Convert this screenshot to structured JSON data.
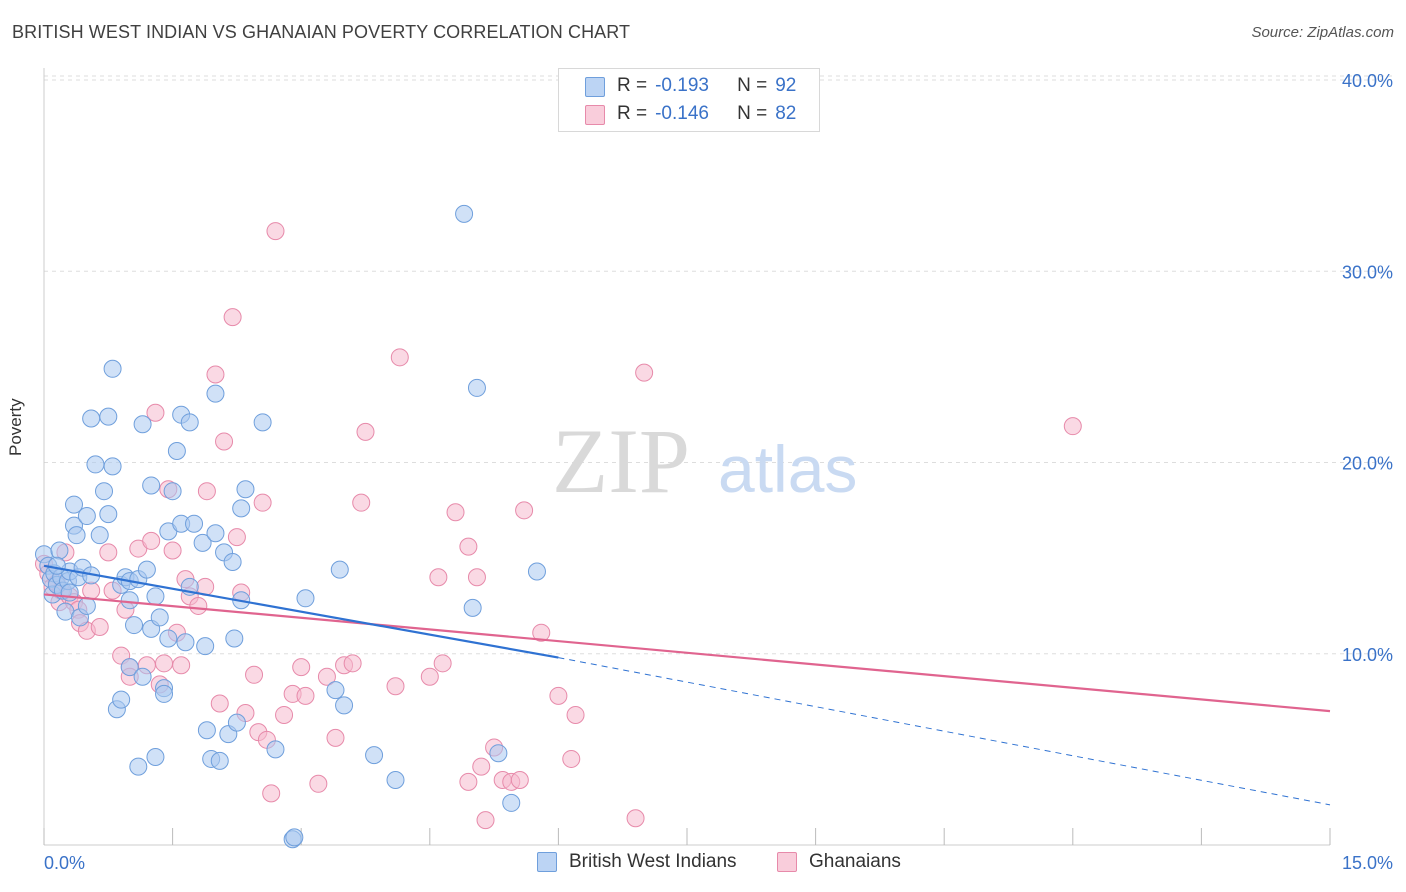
{
  "title": "BRITISH WEST INDIAN VS GHANAIAN POVERTY CORRELATION CHART",
  "source": "Source: ZipAtlas.com",
  "watermark": {
    "zip": "ZIP",
    "atlas": "atlas"
  },
  "legend_top": {
    "r_label": "R =",
    "n_label": "N =",
    "rows": [
      {
        "r": "-0.193",
        "n": "92"
      },
      {
        "r": "-0.146",
        "n": "82"
      }
    ]
  },
  "colors": {
    "blue_fill": "#a9c8f0",
    "blue_stroke": "#6f9fdc",
    "blue_line": "#2f72d2",
    "pink_fill": "#f6b9cd",
    "pink_stroke": "#e78aaa",
    "pink_line": "#e0648f",
    "tick_label": "#3a72c8",
    "grid": "#dddddd"
  },
  "chart_data": {
    "type": "scatter",
    "title": "BRITISH WEST INDIAN VS GHANAIAN POVERTY CORRELATION CHART",
    "xlabel": "",
    "ylabel": "Poverty",
    "xlim": [
      0,
      15
    ],
    "ylim": [
      0,
      40
    ],
    "x_ticks": [
      0,
      1.5,
      3,
      4.5,
      6,
      7.5,
      9,
      10.5,
      12,
      13.5,
      15
    ],
    "x_tick_labels": {
      "left": "0.0%",
      "right": "15.0%"
    },
    "y_ticks": [
      10,
      20,
      30,
      40
    ],
    "y_tick_labels": [
      "10.0%",
      "20.0%",
      "30.0%",
      "40.0%"
    ],
    "grid": true,
    "legend_position": "bottom",
    "series": [
      {
        "name": "British West Indians",
        "r": -0.193,
        "n": 92,
        "trend": {
          "x0": 0,
          "y0": 14.6,
          "x1": 6.0,
          "y1": 9.8,
          "dashed_to_x": 15,
          "dashed_to_y": 2.1
        },
        "points": [
          [
            0.0,
            15.2
          ],
          [
            0.05,
            14.6
          ],
          [
            0.08,
            13.9
          ],
          [
            0.1,
            13.1
          ],
          [
            0.12,
            14.2
          ],
          [
            0.15,
            13.6
          ],
          [
            0.18,
            15.4
          ],
          [
            0.2,
            14.0
          ],
          [
            0.22,
            13.3
          ],
          [
            0.25,
            12.2
          ],
          [
            0.28,
            13.8
          ],
          [
            0.3,
            14.3
          ],
          [
            0.35,
            16.7
          ],
          [
            0.35,
            17.8
          ],
          [
            0.38,
            16.2
          ],
          [
            0.4,
            14.0
          ],
          [
            0.42,
            11.9
          ],
          [
            0.45,
            14.5
          ],
          [
            0.5,
            17.2
          ],
          [
            0.5,
            12.5
          ],
          [
            0.55,
            22.3
          ],
          [
            0.55,
            14.1
          ],
          [
            0.6,
            19.9
          ],
          [
            0.65,
            16.2
          ],
          [
            0.7,
            18.5
          ],
          [
            0.75,
            22.4
          ],
          [
            0.75,
            17.3
          ],
          [
            0.8,
            19.8
          ],
          [
            0.8,
            24.9
          ],
          [
            0.85,
            7.1
          ],
          [
            0.9,
            7.6
          ],
          [
            0.9,
            13.6
          ],
          [
            0.95,
            14.0
          ],
          [
            1.0,
            12.8
          ],
          [
            1.0,
            13.8
          ],
          [
            1.0,
            9.3
          ],
          [
            1.05,
            11.5
          ],
          [
            1.1,
            13.9
          ],
          [
            1.1,
            4.1
          ],
          [
            1.15,
            8.8
          ],
          [
            1.15,
            22.0
          ],
          [
            1.2,
            14.4
          ],
          [
            1.25,
            18.8
          ],
          [
            1.25,
            11.3
          ],
          [
            1.3,
            13.0
          ],
          [
            1.3,
            4.6
          ],
          [
            1.35,
            11.9
          ],
          [
            1.4,
            8.2
          ],
          [
            1.4,
            7.9
          ],
          [
            1.45,
            16.4
          ],
          [
            1.45,
            10.8
          ],
          [
            1.5,
            18.5
          ],
          [
            1.55,
            20.6
          ],
          [
            1.6,
            22.5
          ],
          [
            1.6,
            16.8
          ],
          [
            1.65,
            10.6
          ],
          [
            1.7,
            22.1
          ],
          [
            1.7,
            13.5
          ],
          [
            1.75,
            16.8
          ],
          [
            1.85,
            15.8
          ],
          [
            1.88,
            10.4
          ],
          [
            1.9,
            6.0
          ],
          [
            1.95,
            4.5
          ],
          [
            2.0,
            16.3
          ],
          [
            2.0,
            23.6
          ],
          [
            2.05,
            4.4
          ],
          [
            2.1,
            15.3
          ],
          [
            2.15,
            5.8
          ],
          [
            2.2,
            14.8
          ],
          [
            2.22,
            10.8
          ],
          [
            2.25,
            6.4
          ],
          [
            2.3,
            12.8
          ],
          [
            2.3,
            17.6
          ],
          [
            2.35,
            18.6
          ],
          [
            2.55,
            22.1
          ],
          [
            2.7,
            5.0
          ],
          [
            2.9,
            0.3
          ],
          [
            2.92,
            0.4
          ],
          [
            3.05,
            12.9
          ],
          [
            3.4,
            8.1
          ],
          [
            3.45,
            14.4
          ],
          [
            3.5,
            7.3
          ],
          [
            3.85,
            4.7
          ],
          [
            4.1,
            3.4
          ],
          [
            4.9,
            33.0
          ],
          [
            5.0,
            12.4
          ],
          [
            5.05,
            23.9
          ],
          [
            5.3,
            4.8
          ],
          [
            5.45,
            2.2
          ],
          [
            5.75,
            14.3
          ],
          [
            0.15,
            14.6
          ],
          [
            0.3,
            13.2
          ]
        ]
      },
      {
        "name": "Ghanaians",
        "r": -0.146,
        "n": 82,
        "trend": {
          "x0": 0,
          "y0": 13.1,
          "x1": 15,
          "y1": 7.0
        },
        "points": [
          [
            0.0,
            14.7
          ],
          [
            0.05,
            14.2
          ],
          [
            0.1,
            13.5
          ],
          [
            0.15,
            13.7
          ],
          [
            0.18,
            12.7
          ],
          [
            0.2,
            13.3
          ],
          [
            0.25,
            15.3
          ],
          [
            0.3,
            13.0
          ],
          [
            0.35,
            12.7
          ],
          [
            0.4,
            12.3
          ],
          [
            0.42,
            11.6
          ],
          [
            0.5,
            11.2
          ],
          [
            0.55,
            13.3
          ],
          [
            0.65,
            11.4
          ],
          [
            0.75,
            15.3
          ],
          [
            0.8,
            13.3
          ],
          [
            0.9,
            9.9
          ],
          [
            0.95,
            12.3
          ],
          [
            1.0,
            9.3
          ],
          [
            1.0,
            8.8
          ],
          [
            1.1,
            15.5
          ],
          [
            1.2,
            9.4
          ],
          [
            1.25,
            15.9
          ],
          [
            1.3,
            22.6
          ],
          [
            1.35,
            8.4
          ],
          [
            1.4,
            9.5
          ],
          [
            1.45,
            18.6
          ],
          [
            1.5,
            15.4
          ],
          [
            1.55,
            11.1
          ],
          [
            1.6,
            9.4
          ],
          [
            1.65,
            13.9
          ],
          [
            1.7,
            13.0
          ],
          [
            1.8,
            12.5
          ],
          [
            1.88,
            13.5
          ],
          [
            1.9,
            18.5
          ],
          [
            2.0,
            24.6
          ],
          [
            2.05,
            7.4
          ],
          [
            2.1,
            21.1
          ],
          [
            2.2,
            27.6
          ],
          [
            2.25,
            16.1
          ],
          [
            2.3,
            13.2
          ],
          [
            2.35,
            6.9
          ],
          [
            2.45,
            8.9
          ],
          [
            2.5,
            5.9
          ],
          [
            2.55,
            17.9
          ],
          [
            2.6,
            5.5
          ],
          [
            2.65,
            2.7
          ],
          [
            2.7,
            32.1
          ],
          [
            2.8,
            6.8
          ],
          [
            2.9,
            7.9
          ],
          [
            3.0,
            9.3
          ],
          [
            3.05,
            7.8
          ],
          [
            3.2,
            3.2
          ],
          [
            3.3,
            8.8
          ],
          [
            3.4,
            5.6
          ],
          [
            3.5,
            9.4
          ],
          [
            3.6,
            9.5
          ],
          [
            3.7,
            17.9
          ],
          [
            3.75,
            21.6
          ],
          [
            4.1,
            8.3
          ],
          [
            4.15,
            25.5
          ],
          [
            4.5,
            8.8
          ],
          [
            4.65,
            9.5
          ],
          [
            4.8,
            17.4
          ],
          [
            4.6,
            14.0
          ],
          [
            4.95,
            15.6
          ],
          [
            4.95,
            3.3
          ],
          [
            5.05,
            14.0
          ],
          [
            5.1,
            4.1
          ],
          [
            5.15,
            1.3
          ],
          [
            5.25,
            5.1
          ],
          [
            5.35,
            3.4
          ],
          [
            5.45,
            3.3
          ],
          [
            5.55,
            3.4
          ],
          [
            5.6,
            17.5
          ],
          [
            5.8,
            11.1
          ],
          [
            6.0,
            7.8
          ],
          [
            6.15,
            4.5
          ],
          [
            6.2,
            6.8
          ],
          [
            6.9,
            1.4
          ],
          [
            7.0,
            24.7
          ],
          [
            12.0,
            21.9
          ]
        ]
      }
    ]
  }
}
